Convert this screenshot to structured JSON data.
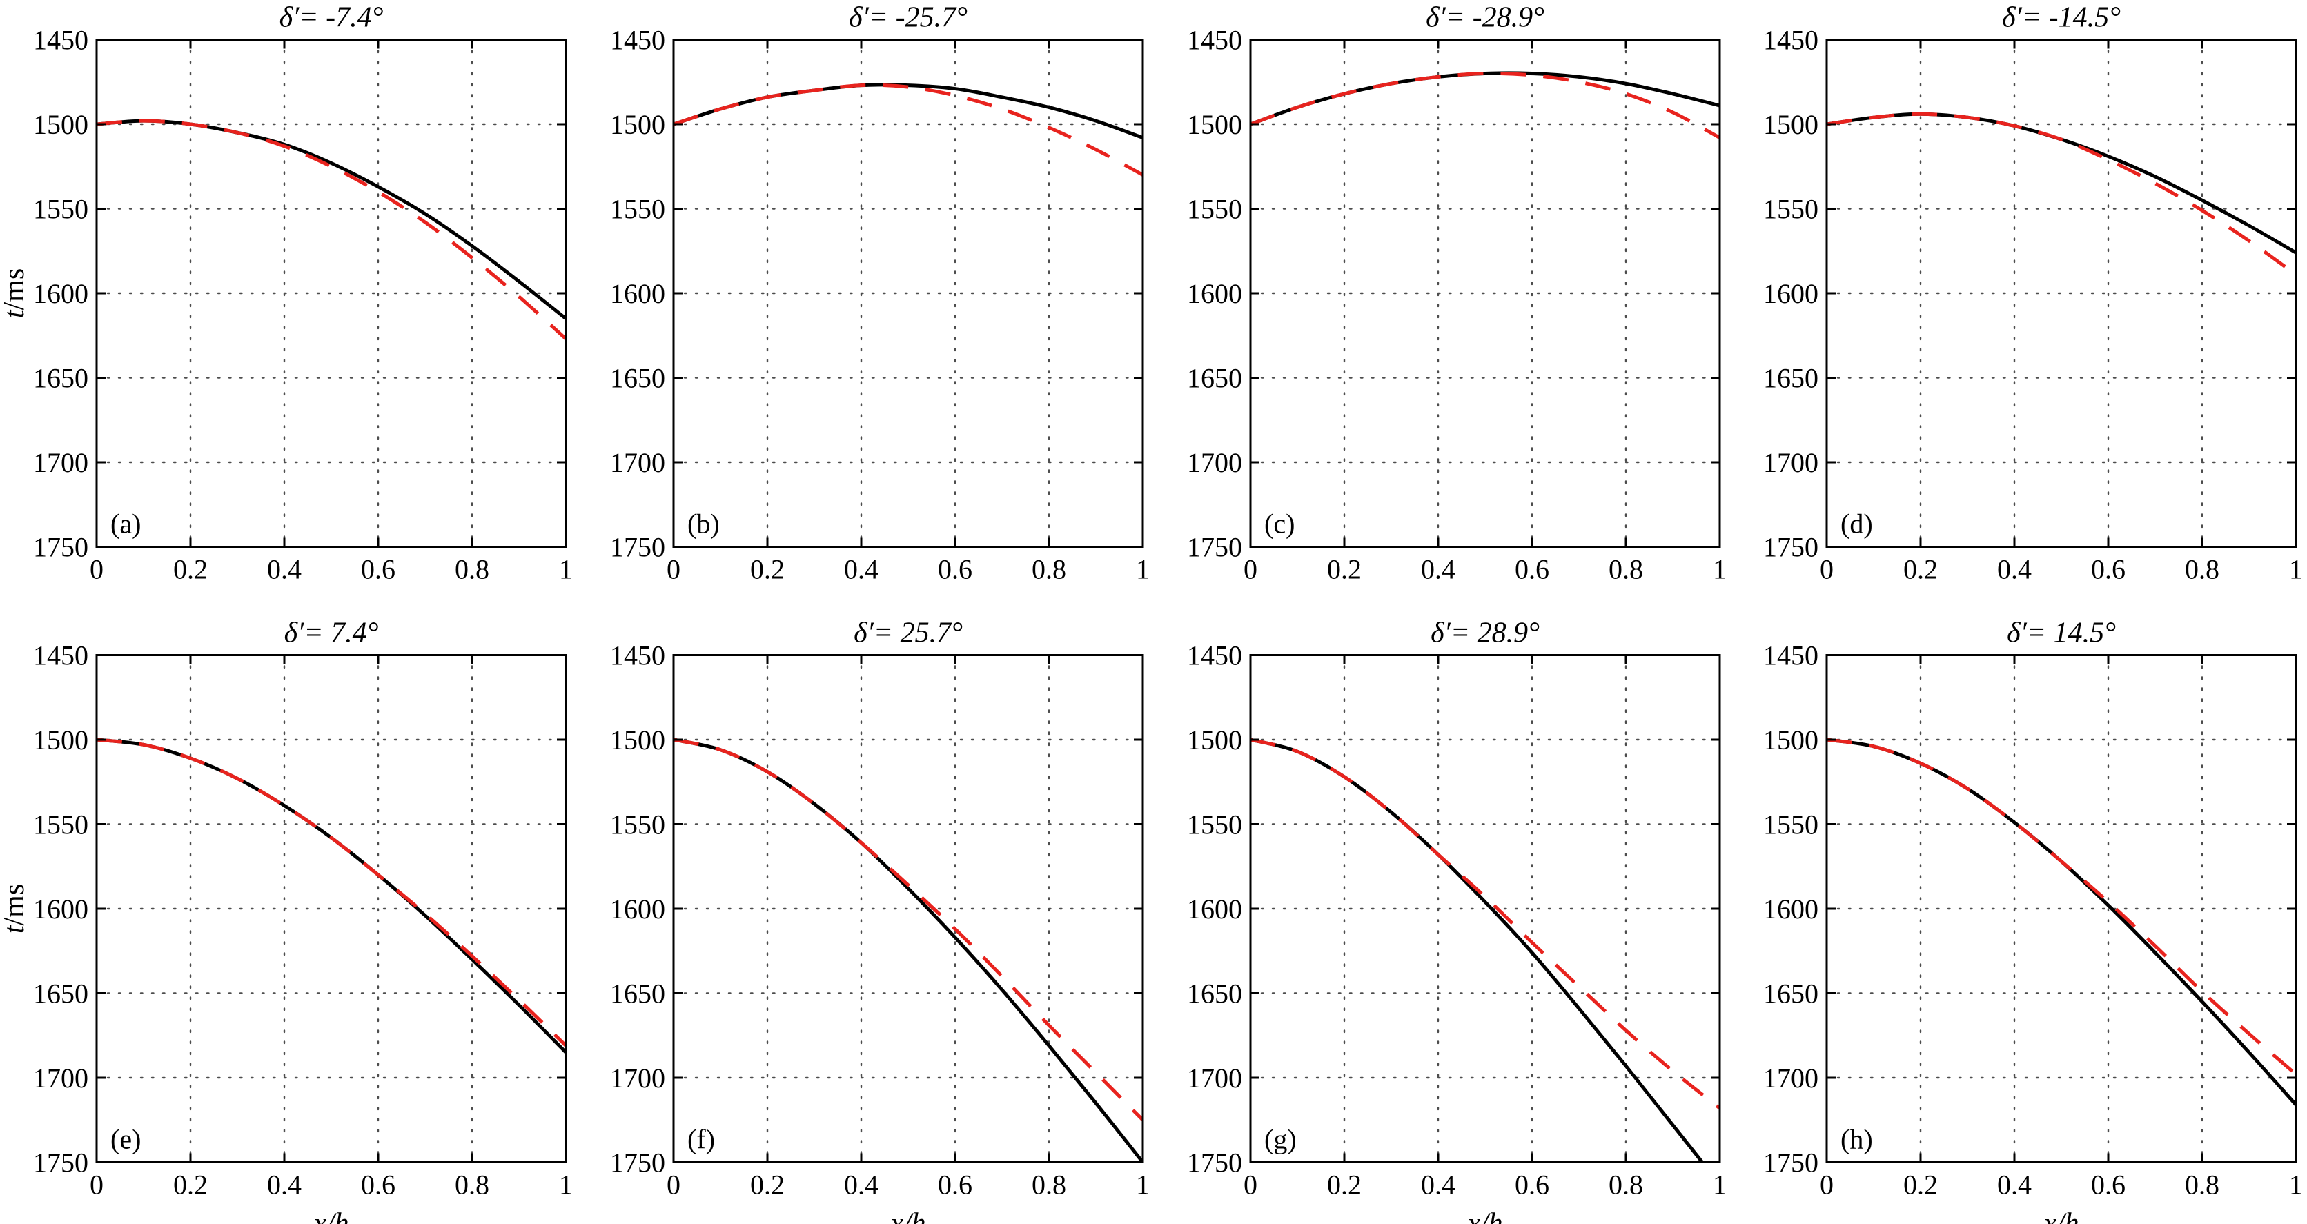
{
  "figure": {
    "background": "#ffffff",
    "axis_color": "#000000",
    "grid_color": "#4d4d4d",
    "ylabel": "t/ms",
    "xlabel": "x/h",
    "xlim": [
      0,
      1
    ],
    "ylim": [
      1450,
      1750
    ],
    "y_axis_inverted": true,
    "xticks": [
      0,
      0.2,
      0.4,
      0.6,
      0.8,
      1
    ],
    "xtick_labels": [
      "0",
      "0.2",
      "0.4",
      "0.6",
      "0.8",
      "1"
    ],
    "yticks": [
      1450,
      1500,
      1550,
      1600,
      1650,
      1700,
      1750
    ],
    "ytick_labels": [
      "1450",
      "1500",
      "1550",
      "1600",
      "1650",
      "1700",
      "1750"
    ],
    "grid": "dotted",
    "solid_series_color": "#000000",
    "dashed_series_color": "#e8231e"
  },
  "chart_data": [
    {
      "type": "line",
      "id": "a",
      "corner_label": "(a)",
      "title": "δ′= -7.4°",
      "row": 0,
      "col": 0,
      "show_ylabel": true,
      "show_xlabel": false,
      "x": [
        0,
        0.1,
        0.2,
        0.3,
        0.4,
        0.5,
        0.6,
        0.7,
        0.8,
        0.9,
        1.0
      ],
      "series": [
        {
          "name": "exact-traveltime-solid-black",
          "style": "solid",
          "color": "#000000",
          "y": [
            1500,
            1498,
            1500,
            1505,
            1512,
            1523,
            1537,
            1553,
            1572,
            1593,
            1615
          ]
        },
        {
          "name": "approximate-traveltime-dashed-red",
          "style": "dashed",
          "color": "#e8231e",
          "y": [
            1500,
            1498,
            1500,
            1505,
            1513,
            1525,
            1540,
            1558,
            1579,
            1602,
            1627
          ]
        }
      ]
    },
    {
      "type": "line",
      "id": "b",
      "corner_label": "(b)",
      "title": "δ′= -25.7°",
      "row": 0,
      "col": 1,
      "show_ylabel": false,
      "show_xlabel": false,
      "x": [
        0,
        0.1,
        0.2,
        0.3,
        0.4,
        0.5,
        0.6,
        0.7,
        0.8,
        0.9,
        1.0
      ],
      "series": [
        {
          "name": "exact-traveltime-solid-black",
          "style": "solid",
          "color": "#000000",
          "y": [
            1500,
            1491,
            1484,
            1480,
            1477,
            1477,
            1479,
            1484,
            1490,
            1498,
            1508
          ]
        },
        {
          "name": "approximate-traveltime-dashed-red",
          "style": "dashed",
          "color": "#e8231e",
          "y": [
            1500,
            1491,
            1484,
            1480,
            1477,
            1478,
            1483,
            1491,
            1502,
            1515,
            1530
          ]
        }
      ]
    },
    {
      "type": "line",
      "id": "c",
      "corner_label": "(c)",
      "title": "δ′= -28.9°",
      "row": 0,
      "col": 2,
      "show_ylabel": false,
      "show_xlabel": false,
      "x": [
        0,
        0.1,
        0.2,
        0.3,
        0.4,
        0.5,
        0.6,
        0.7,
        0.8,
        0.9,
        1.0
      ],
      "series": [
        {
          "name": "exact-traveltime-solid-black",
          "style": "solid",
          "color": "#000000",
          "y": [
            1500,
            1490,
            1482,
            1476,
            1472,
            1470,
            1470,
            1472,
            1476,
            1482,
            1489
          ]
        },
        {
          "name": "approximate-traveltime-dashed-red",
          "style": "dashed",
          "color": "#e8231e",
          "y": [
            1500,
            1490,
            1482,
            1476,
            1472,
            1470,
            1471,
            1475,
            1482,
            1493,
            1508
          ]
        }
      ]
    },
    {
      "type": "line",
      "id": "d",
      "corner_label": "(d)",
      "title": "δ′= -14.5°",
      "row": 0,
      "col": 3,
      "show_ylabel": false,
      "show_xlabel": false,
      "x": [
        0,
        0.1,
        0.2,
        0.3,
        0.4,
        0.5,
        0.6,
        0.7,
        0.8,
        0.9,
        1.0
      ],
      "series": [
        {
          "name": "exact-traveltime-solid-black",
          "style": "solid",
          "color": "#000000",
          "y": [
            1500,
            1496,
            1494,
            1496,
            1501,
            1509,
            1519,
            1531,
            1545,
            1560,
            1576
          ]
        },
        {
          "name": "approximate-traveltime-dashed-red",
          "style": "dashed",
          "color": "#e8231e",
          "y": [
            1500,
            1496,
            1494,
            1496,
            1501,
            1509,
            1521,
            1535,
            1551,
            1569,
            1589
          ]
        }
      ]
    },
    {
      "type": "line",
      "id": "e",
      "corner_label": "(e)",
      "title": "δ′= 7.4°",
      "row": 1,
      "col": 0,
      "show_ylabel": true,
      "show_xlabel": true,
      "x": [
        0,
        0.1,
        0.2,
        0.3,
        0.4,
        0.5,
        0.6,
        0.7,
        0.8,
        0.9,
        1.0
      ],
      "series": [
        {
          "name": "exact-traveltime-solid-black",
          "style": "solid",
          "color": "#000000",
          "y": [
            1500,
            1503,
            1511,
            1523,
            1539,
            1558,
            1580,
            1604,
            1630,
            1657,
            1685
          ]
        },
        {
          "name": "approximate-traveltime-dashed-red",
          "style": "dashed",
          "color": "#e8231e",
          "y": [
            1500,
            1503,
            1511,
            1523,
            1539,
            1558,
            1580,
            1603,
            1628,
            1654,
            1681
          ]
        }
      ]
    },
    {
      "type": "line",
      "id": "f",
      "corner_label": "(f)",
      "title": "δ′= 25.7°",
      "row": 1,
      "col": 1,
      "show_ylabel": false,
      "show_xlabel": true,
      "x": [
        0,
        0.1,
        0.2,
        0.3,
        0.4,
        0.5,
        0.6,
        0.7,
        0.8,
        0.9,
        1.0
      ],
      "series": [
        {
          "name": "exact-traveltime-solid-black",
          "style": "solid",
          "color": "#000000",
          "y": [
            1500,
            1506,
            1519,
            1538,
            1561,
            1588,
            1617,
            1648,
            1681,
            1715,
            1750
          ]
        },
        {
          "name": "approximate-traveltime-dashed-red",
          "style": "dashed",
          "color": "#e8231e",
          "y": [
            1500,
            1506,
            1519,
            1538,
            1561,
            1586,
            1612,
            1640,
            1669,
            1697,
            1725
          ]
        }
      ]
    },
    {
      "type": "line",
      "id": "g",
      "corner_label": "(g)",
      "title": "δ′= 28.9°",
      "row": 1,
      "col": 2,
      "show_ylabel": false,
      "show_xlabel": true,
      "x": [
        0,
        0.1,
        0.2,
        0.3,
        0.4,
        0.5,
        0.6,
        0.7,
        0.8,
        0.9,
        1.0
      ],
      "series": [
        {
          "name": "exact-traveltime-solid-black",
          "style": "solid",
          "color": "#000000",
          "y": [
            1500,
            1507,
            1522,
            1543,
            1568,
            1596,
            1626,
            1659,
            1693,
            1728,
            1763
          ]
        },
        {
          "name": "approximate-traveltime-dashed-red",
          "style": "dashed",
          "color": "#e8231e",
          "y": [
            1500,
            1507,
            1522,
            1543,
            1568,
            1593,
            1620,
            1646,
            1672,
            1696,
            1718
          ]
        }
      ]
    },
    {
      "type": "line",
      "id": "h",
      "corner_label": "(h)",
      "title": "δ′= 14.5°",
      "row": 1,
      "col": 3,
      "show_ylabel": false,
      "show_xlabel": true,
      "x": [
        0,
        0.1,
        0.2,
        0.3,
        0.4,
        0.5,
        0.6,
        0.7,
        0.8,
        0.9,
        1.0
      ],
      "series": [
        {
          "name": "exact-traveltime-solid-black",
          "style": "solid",
          "color": "#000000",
          "y": [
            1500,
            1504,
            1514,
            1529,
            1549,
            1572,
            1598,
            1626,
            1655,
            1685,
            1716
          ]
        },
        {
          "name": "approximate-traveltime-dashed-red",
          "style": "dashed",
          "color": "#e8231e",
          "y": [
            1500,
            1504,
            1514,
            1529,
            1549,
            1572,
            1596,
            1622,
            1649,
            1674,
            1698
          ]
        }
      ]
    }
  ]
}
